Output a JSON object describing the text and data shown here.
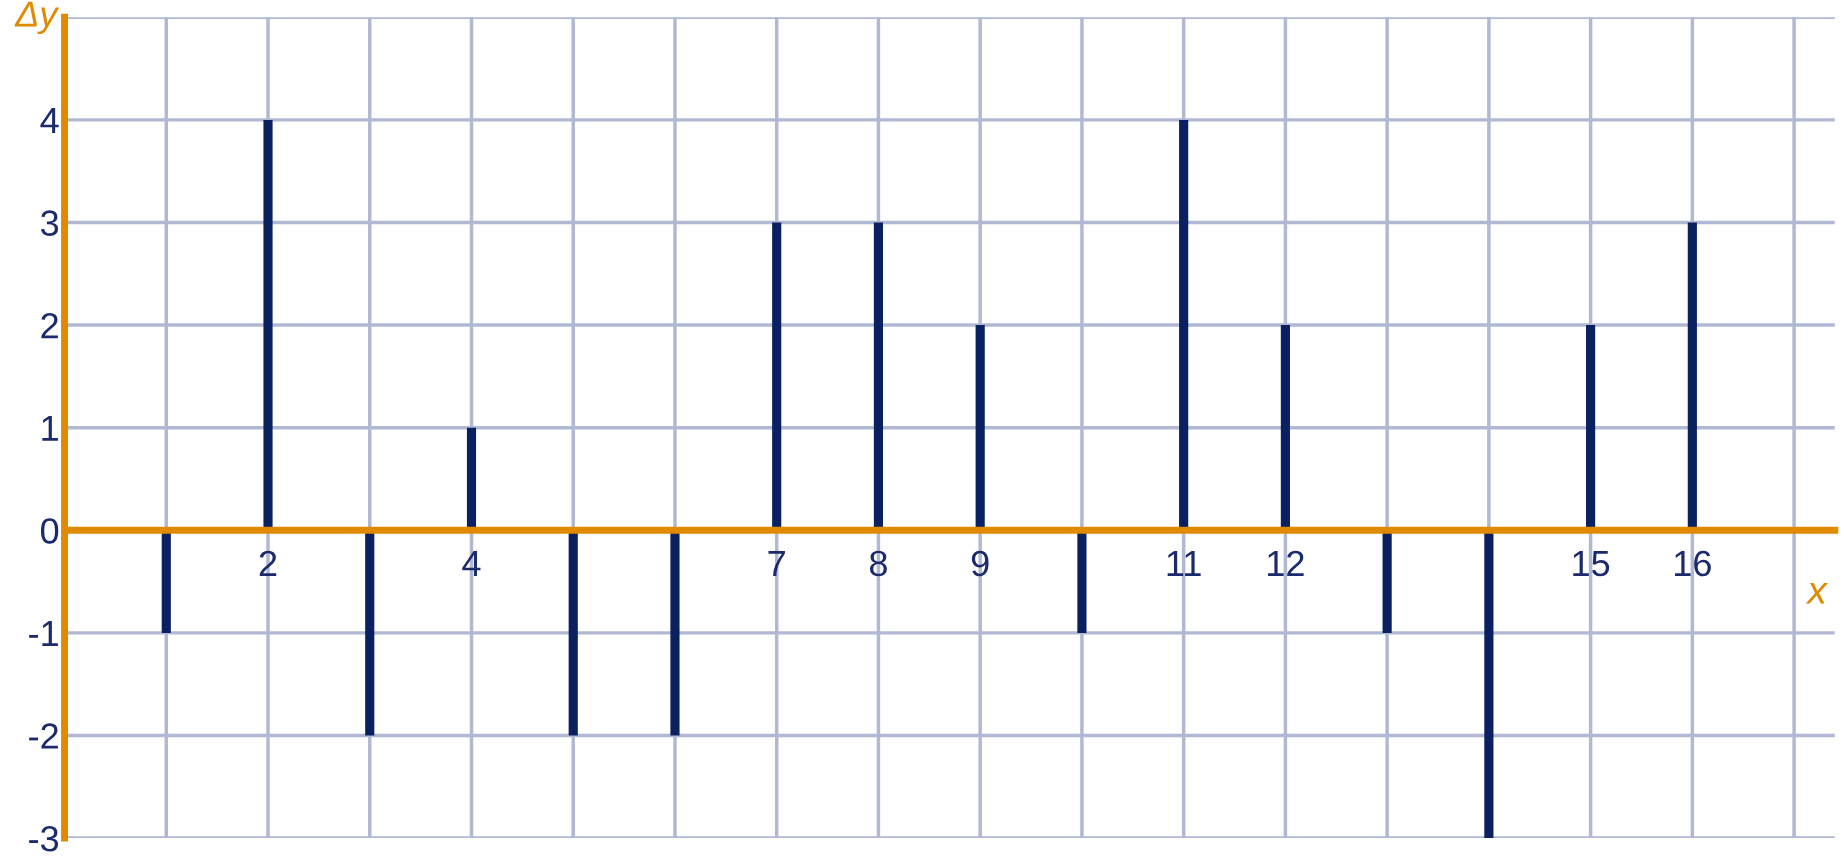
{
  "chart_data": {
    "type": "bar",
    "xlabel": "x",
    "ylabel": "Δy",
    "x": [
      1,
      2,
      3,
      4,
      5,
      6,
      7,
      8,
      9,
      10,
      11,
      12,
      13,
      14,
      15,
      16
    ],
    "series": [
      {
        "color": "#0a2060",
        "values": [
          -1,
          4,
          -2,
          1,
          -2,
          -2,
          3,
          3,
          2,
          -1,
          4,
          2,
          -1,
          -3,
          2,
          3
        ]
      }
    ],
    "xlim": [
      0,
      17.4
    ],
    "xticks": [
      {
        "value": 1,
        "label": null
      },
      2,
      {
        "value": 3,
        "label": null
      },
      4,
      {
        "value": 5,
        "label": null
      },
      {
        "value": 6,
        "label": null
      },
      7,
      8,
      9,
      {
        "value": 10,
        "label": null
      },
      11,
      12,
      {
        "value": 13,
        "label": null
      },
      {
        "value": 14,
        "label": null
      },
      15,
      16,
      {
        "value": 17,
        "label": null
      }
    ],
    "ylim": [
      -3,
      5
    ],
    "yticks": [
      -3,
      -2,
      -1,
      0,
      1,
      2,
      3,
      4,
      {
        "value": 5,
        "label": null
      }
    ],
    "grid": true
  }
}
